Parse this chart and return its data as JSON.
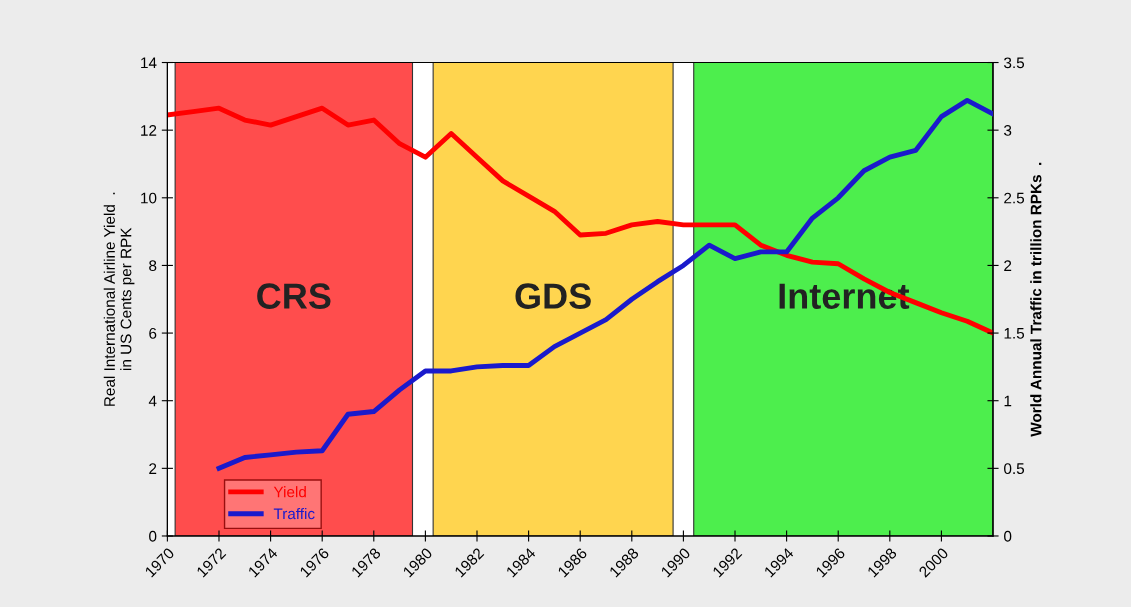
{
  "chart_data": {
    "type": "line",
    "ylabel": "Real International Airline Yield  .\nin US Cents per RPK",
    "y2label": "World Annual Traffic in trillion RPKs  .",
    "x": [
      1970,
      1971,
      1972,
      1973,
      1974,
      1975,
      1976,
      1977,
      1978,
      1979,
      1980,
      1981,
      1982,
      1983,
      1984,
      1985,
      1986,
      1987,
      1988,
      1989,
      1990,
      1991,
      1992,
      1993,
      1994,
      1995,
      1996,
      1997,
      1998,
      1999,
      2000,
      2001,
      2002
    ],
    "series": [
      {
        "name": "Yield",
        "color": "#ff0000",
        "values": [
          12.45,
          12.55,
          12.65,
          12.3,
          12.15,
          12.4,
          12.65,
          12.15,
          12.3,
          11.6,
          11.2,
          11.9,
          11.2,
          10.5,
          10.05,
          9.6,
          8.9,
          8.95,
          9.2,
          9.3,
          9.2,
          9.2,
          9.2,
          8.6,
          8.3,
          8.1,
          8.05,
          7.6,
          7.2,
          6.9,
          6.6,
          6.35,
          6.0
        ]
      },
      {
        "name": "Traffic",
        "color": "#1a1acc",
        "axis": "y2",
        "values": [
          null,
          null,
          0.5,
          0.58,
          0.6,
          0.62,
          0.63,
          0.9,
          0.92,
          1.08,
          1.22,
          1.22,
          1.25,
          1.26,
          1.26,
          1.4,
          1.5,
          1.6,
          1.75,
          1.88,
          2.0,
          2.15,
          2.05,
          2.1,
          2.1,
          2.35,
          2.5,
          2.7,
          2.8,
          2.85,
          3.1,
          3.22,
          3.12
        ]
      }
    ],
    "xlim": [
      1970,
      2002
    ],
    "xticks": [
      1970,
      1972,
      1974,
      1976,
      1978,
      1980,
      1982,
      1984,
      1986,
      1988,
      1990,
      1992,
      1994,
      1996,
      1998,
      2000
    ],
    "ylim": [
      0,
      14
    ],
    "yticks": [
      0,
      2,
      4,
      6,
      8,
      10,
      12,
      14
    ],
    "y2lim": [
      0,
      3.5
    ],
    "y2ticks": [
      0,
      0.5,
      1,
      1.5,
      2,
      2.5,
      3,
      3.5
    ],
    "bands": [
      {
        "axis": "x",
        "from": 1970.3,
        "to": 1979.5,
        "label": "CRS",
        "color": "#ff4d4d"
      },
      {
        "axis": "x",
        "from": 1980.3,
        "to": 1989.6,
        "label": "GDS",
        "color": "#ffd54f"
      },
      {
        "axis": "x",
        "from": 1990.4,
        "to": 2002,
        "label": "Internet",
        "color": "#4dee4d"
      }
    ],
    "legend": "bottom left",
    "grid": false,
    "marker": "none",
    "line_style": "solid"
  }
}
